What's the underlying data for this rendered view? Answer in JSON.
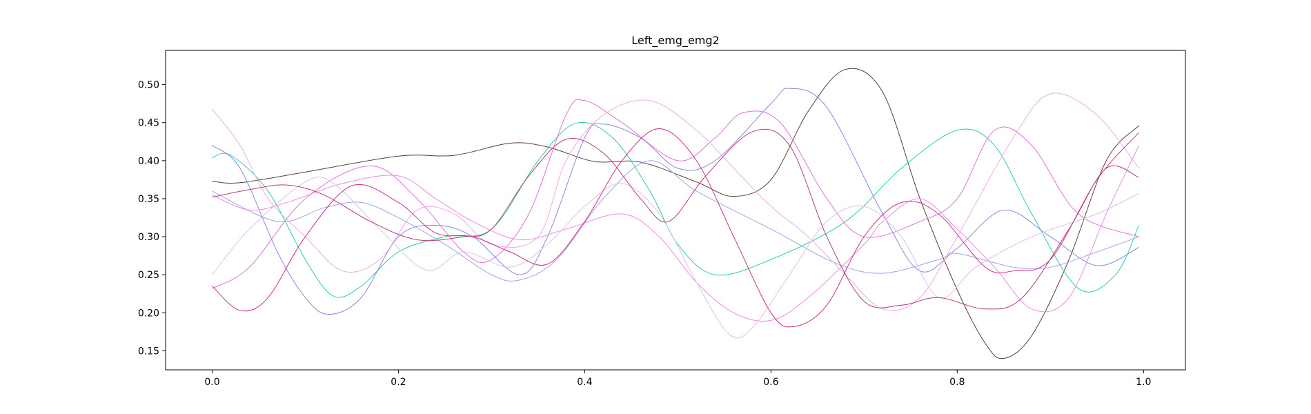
{
  "chart_data": {
    "type": "line",
    "title": "Left_emg_emg2",
    "xlabel": "",
    "ylabel": "",
    "xlim": [
      -0.05,
      1.045
    ],
    "ylim": [
      0.125,
      0.545
    ],
    "xticks": [
      "0.0",
      "0.2",
      "0.4",
      "0.6",
      "0.8",
      "1.0"
    ],
    "yticks": [
      "0.15",
      "0.20",
      "0.25",
      "0.30",
      "0.35",
      "0.40",
      "0.45",
      "0.50"
    ],
    "grid": false,
    "legend": "none",
    "series": [
      {
        "color": "#5c3a3a",
        "points": [
          [
            0,
            0.373
          ],
          [
            0.03,
            0.371
          ],
          [
            0.1,
            0.385
          ],
          [
            0.2,
            0.406
          ],
          [
            0.26,
            0.407
          ],
          [
            0.32,
            0.423
          ],
          [
            0.36,
            0.418
          ],
          [
            0.41,
            0.399
          ],
          [
            0.46,
            0.398
          ],
          [
            0.52,
            0.372
          ],
          [
            0.56,
            0.353
          ],
          [
            0.6,
            0.375
          ],
          [
            0.64,
            0.465
          ],
          [
            0.68,
            0.52
          ],
          [
            0.72,
            0.49
          ],
          [
            0.76,
            0.35
          ],
          [
            0.8,
            0.23
          ],
          [
            0.83,
            0.16
          ],
          [
            0.85,
            0.14
          ],
          [
            0.88,
            0.17
          ],
          [
            0.92,
            0.27
          ],
          [
            0.96,
            0.4
          ],
          [
            0.995,
            0.446
          ]
        ]
      },
      {
        "color": "#1fd39e",
        "points": [
          [
            0,
            0.404
          ],
          [
            0.02,
            0.407
          ],
          [
            0.06,
            0.36
          ],
          [
            0.1,
            0.27
          ],
          [
            0.13,
            0.222
          ],
          [
            0.16,
            0.235
          ],
          [
            0.2,
            0.28
          ],
          [
            0.25,
            0.3
          ],
          [
            0.3,
            0.31
          ],
          [
            0.35,
            0.4
          ],
          [
            0.39,
            0.449
          ],
          [
            0.43,
            0.43
          ],
          [
            0.47,
            0.36
          ],
          [
            0.5,
            0.29
          ],
          [
            0.54,
            0.25
          ],
          [
            0.6,
            0.27
          ],
          [
            0.68,
            0.32
          ],
          [
            0.74,
            0.39
          ],
          [
            0.8,
            0.44
          ],
          [
            0.84,
            0.42
          ],
          [
            0.88,
            0.33
          ],
          [
            0.93,
            0.232
          ],
          [
            0.97,
            0.25
          ],
          [
            0.995,
            0.315
          ]
        ]
      },
      {
        "color": "#8888dd",
        "points": [
          [
            0,
            0.42
          ],
          [
            0.03,
            0.39
          ],
          [
            0.07,
            0.28
          ],
          [
            0.1,
            0.22
          ],
          [
            0.125,
            0.198
          ],
          [
            0.16,
            0.22
          ],
          [
            0.2,
            0.3
          ],
          [
            0.24,
            0.315
          ],
          [
            0.28,
            0.3
          ],
          [
            0.33,
            0.25
          ],
          [
            0.36,
            0.3
          ],
          [
            0.4,
            0.43
          ],
          [
            0.42,
            0.448
          ],
          [
            0.46,
            0.43
          ],
          [
            0.5,
            0.39
          ],
          [
            0.54,
            0.4
          ],
          [
            0.6,
            0.475
          ],
          [
            0.62,
            0.495
          ],
          [
            0.66,
            0.47
          ],
          [
            0.72,
            0.33
          ],
          [
            0.76,
            0.255
          ],
          [
            0.8,
            0.285
          ],
          [
            0.85,
            0.335
          ],
          [
            0.9,
            0.3
          ],
          [
            0.95,
            0.262
          ],
          [
            0.995,
            0.286
          ]
        ]
      },
      {
        "color": "#a0a0ee",
        "points": [
          [
            0,
            0.36
          ],
          [
            0.07,
            0.32
          ],
          [
            0.12,
            0.338
          ],
          [
            0.16,
            0.345
          ],
          [
            0.2,
            0.325
          ],
          [
            0.25,
            0.29
          ],
          [
            0.3,
            0.25
          ],
          [
            0.33,
            0.243
          ],
          [
            0.37,
            0.27
          ],
          [
            0.42,
            0.35
          ],
          [
            0.47,
            0.4
          ],
          [
            0.52,
            0.36
          ],
          [
            0.6,
            0.31
          ],
          [
            0.67,
            0.265
          ],
          [
            0.72,
            0.252
          ],
          [
            0.78,
            0.27
          ],
          [
            0.8,
            0.278
          ],
          [
            0.86,
            0.26
          ],
          [
            0.9,
            0.26
          ],
          [
            0.95,
            0.28
          ],
          [
            0.995,
            0.3
          ]
        ]
      },
      {
        "color": "#e070d8",
        "points": [
          [
            0,
            0.232
          ],
          [
            0.04,
            0.26
          ],
          [
            0.1,
            0.35
          ],
          [
            0.17,
            0.393
          ],
          [
            0.22,
            0.35
          ],
          [
            0.27,
            0.28
          ],
          [
            0.3,
            0.27
          ],
          [
            0.34,
            0.33
          ],
          [
            0.38,
            0.46
          ],
          [
            0.4,
            0.479
          ],
          [
            0.44,
            0.45
          ],
          [
            0.5,
            0.4
          ],
          [
            0.54,
            0.43
          ],
          [
            0.57,
            0.463
          ],
          [
            0.61,
            0.45
          ],
          [
            0.66,
            0.35
          ],
          [
            0.7,
            0.3
          ],
          [
            0.76,
            0.32
          ],
          [
            0.8,
            0.35
          ],
          [
            0.84,
            0.44
          ],
          [
            0.88,
            0.42
          ],
          [
            0.93,
            0.33
          ],
          [
            0.995,
            0.3
          ]
        ]
      },
      {
        "color": "#ee88e6",
        "points": [
          [
            0,
            0.355
          ],
          [
            0.04,
            0.335
          ],
          [
            0.08,
            0.345
          ],
          [
            0.14,
            0.37
          ],
          [
            0.2,
            0.38
          ],
          [
            0.24,
            0.35
          ],
          [
            0.28,
            0.32
          ],
          [
            0.33,
            0.296
          ],
          [
            0.38,
            0.31
          ],
          [
            0.44,
            0.33
          ],
          [
            0.48,
            0.3
          ],
          [
            0.52,
            0.24
          ],
          [
            0.56,
            0.2
          ],
          [
            0.6,
            0.19
          ],
          [
            0.64,
            0.22
          ],
          [
            0.7,
            0.29
          ],
          [
            0.72,
            0.32
          ],
          [
            0.76,
            0.35
          ],
          [
            0.8,
            0.31
          ],
          [
            0.84,
            0.26
          ],
          [
            0.88,
            0.205
          ],
          [
            0.92,
            0.22
          ],
          [
            0.96,
            0.33
          ],
          [
            0.995,
            0.42
          ]
        ]
      },
      {
        "color": "#f0a8ee",
        "points": [
          [
            0,
            0.468
          ],
          [
            0.03,
            0.42
          ],
          [
            0.06,
            0.35
          ],
          [
            0.1,
            0.3
          ],
          [
            0.14,
            0.255
          ],
          [
            0.18,
            0.27
          ],
          [
            0.22,
            0.335
          ],
          [
            0.26,
            0.33
          ],
          [
            0.3,
            0.29
          ],
          [
            0.35,
            0.3
          ],
          [
            0.38,
            0.4
          ],
          [
            0.42,
            0.46
          ],
          [
            0.47,
            0.479
          ],
          [
            0.52,
            0.44
          ],
          [
            0.56,
            0.39
          ],
          [
            0.6,
            0.34
          ],
          [
            0.64,
            0.3
          ],
          [
            0.68,
            0.25
          ],
          [
            0.72,
            0.205
          ],
          [
            0.76,
            0.22
          ],
          [
            0.8,
            0.3
          ],
          [
            0.86,
            0.43
          ],
          [
            0.9,
            0.488
          ],
          [
            0.95,
            0.46
          ],
          [
            0.995,
            0.39
          ]
        ]
      },
      {
        "color": "#ddc0e8",
        "points": [
          [
            0,
            0.25
          ],
          [
            0.04,
            0.31
          ],
          [
            0.1,
            0.372
          ],
          [
            0.13,
            0.37
          ],
          [
            0.18,
            0.31
          ],
          [
            0.23,
            0.256
          ],
          [
            0.27,
            0.28
          ],
          [
            0.32,
            0.26
          ],
          [
            0.36,
            0.29
          ],
          [
            0.4,
            0.34
          ],
          [
            0.44,
            0.37
          ],
          [
            0.48,
            0.33
          ],
          [
            0.52,
            0.24
          ],
          [
            0.555,
            0.172
          ],
          [
            0.58,
            0.18
          ],
          [
            0.62,
            0.25
          ],
          [
            0.66,
            0.32
          ],
          [
            0.7,
            0.34
          ],
          [
            0.74,
            0.3
          ],
          [
            0.78,
            0.22
          ],
          [
            0.82,
            0.26
          ],
          [
            0.88,
            0.3
          ],
          [
            0.95,
            0.33
          ],
          [
            0.995,
            0.357
          ]
        ]
      },
      {
        "color": "#cc2e88",
        "points": [
          [
            0,
            0.235
          ],
          [
            0.03,
            0.203
          ],
          [
            0.06,
            0.22
          ],
          [
            0.1,
            0.3
          ],
          [
            0.15,
            0.367
          ],
          [
            0.2,
            0.345
          ],
          [
            0.24,
            0.305
          ],
          [
            0.28,
            0.3
          ],
          [
            0.32,
            0.28
          ],
          [
            0.36,
            0.264
          ],
          [
            0.4,
            0.32
          ],
          [
            0.44,
            0.4
          ],
          [
            0.48,
            0.442
          ],
          [
            0.52,
            0.4
          ],
          [
            0.56,
            0.3
          ],
          [
            0.6,
            0.2
          ],
          [
            0.625,
            0.182
          ],
          [
            0.66,
            0.21
          ],
          [
            0.7,
            0.3
          ],
          [
            0.74,
            0.345
          ],
          [
            0.78,
            0.33
          ],
          [
            0.83,
            0.26
          ],
          [
            0.86,
            0.255
          ],
          [
            0.9,
            0.27
          ],
          [
            0.95,
            0.375
          ],
          [
            0.995,
            0.437
          ]
        ]
      },
      {
        "color": "#b83c78",
        "points": [
          [
            0,
            0.352
          ],
          [
            0.04,
            0.362
          ],
          [
            0.08,
            0.368
          ],
          [
            0.12,
            0.355
          ],
          [
            0.17,
            0.32
          ],
          [
            0.22,
            0.296
          ],
          [
            0.27,
            0.3
          ],
          [
            0.3,
            0.31
          ],
          [
            0.34,
            0.38
          ],
          [
            0.38,
            0.428
          ],
          [
            0.42,
            0.41
          ],
          [
            0.46,
            0.35
          ],
          [
            0.49,
            0.32
          ],
          [
            0.53,
            0.38
          ],
          [
            0.58,
            0.438
          ],
          [
            0.62,
            0.42
          ],
          [
            0.66,
            0.3
          ],
          [
            0.7,
            0.215
          ],
          [
            0.74,
            0.21
          ],
          [
            0.78,
            0.22
          ],
          [
            0.83,
            0.205
          ],
          [
            0.87,
            0.22
          ],
          [
            0.92,
            0.31
          ],
          [
            0.96,
            0.39
          ],
          [
            0.995,
            0.378
          ]
        ]
      }
    ]
  }
}
